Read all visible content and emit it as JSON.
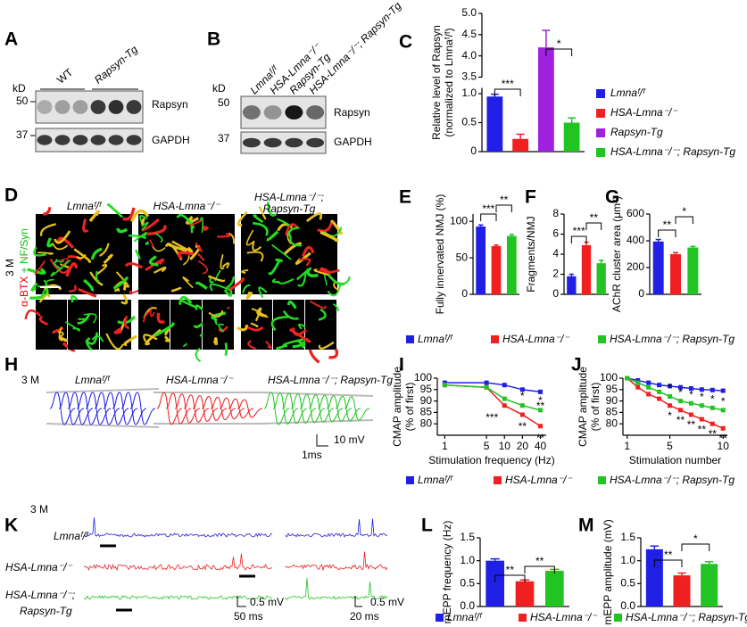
{
  "panel_labels": [
    "A",
    "B",
    "C",
    "D",
    "E",
    "F",
    "G",
    "H",
    "I",
    "J",
    "K",
    "L",
    "M"
  ],
  "panel_a": {
    "kd": "kD",
    "mw": [
      "50",
      "37"
    ],
    "groups": [
      "WT",
      "Rapsyn-Tg"
    ],
    "bands": [
      "Rapsyn",
      "GAPDH"
    ]
  },
  "panel_b": {
    "kd": "kD",
    "mw": [
      "50",
      "37"
    ],
    "lanes": [
      "Lmnaᶠ/ᶠ",
      "HSA-Lmna⁻/⁻",
      "Rapsyn-Tg",
      "HSA-Lmna⁻/⁻; Rapsyn-Tg"
    ],
    "bands": [
      "Rapsyn",
      "GAPDH"
    ]
  },
  "panel_d": {
    "titles": [
      "Lmnaᶠ/ᶠ",
      "HSA-Lmna⁻/⁻",
      "HSA-Lmna⁻/⁻;",
      "Rapsyn-Tg"
    ],
    "age": "3 M",
    "stain_red": "α-BTX",
    "stain_plus": " + ",
    "stain_green": "NF/Syn"
  },
  "panel_h": {
    "age": "3 M",
    "titles": [
      "Lmnaᶠ/ᶠ",
      "HSA-Lmna⁻/⁻",
      "HSA-Lmna⁻/⁻; Rapsyn-Tg"
    ],
    "scale_v": "10 mV",
    "scale_t": "1ms"
  },
  "panel_k": {
    "age": "3 M",
    "rows": [
      "Lmnaᶠ/ᶠ",
      "HSA-Lmna⁻/⁻",
      "HSA-Lmna⁻/⁻;",
      "Rapsyn-Tg"
    ],
    "scale_v1": "0.5 mV",
    "scale_t1": "50 ms",
    "scale_v2": "0.5 mV",
    "scale_t2": "20 ms"
  },
  "legend": [
    {
      "name": "Lmnaᶠ/ᶠ",
      "color": "#1f1fe6"
    },
    {
      "name": "HSA-Lmna⁻/⁻",
      "color": "#f02020"
    },
    {
      "name": "HSA-Lmna⁻/⁻; Rapsyn-Tg",
      "color": "#22c422"
    }
  ],
  "chart_data": [
    {
      "type": "bar",
      "ylabel": [
        "Relative level of Rapsyn",
        "(normalized to Lmnaᶠ/ᶠ)"
      ],
      "values": [
        0.95,
        0.22,
        4.2,
        0.5
      ],
      "errors": [
        0.04,
        0.08,
        0.4,
        0.08
      ],
      "colors": [
        "#1f1fe6",
        "#f02020",
        "#a020e0",
        "#22c422"
      ],
      "ylim": [
        0,
        5
      ],
      "ybreak": [
        1.1,
        3.5
      ],
      "yticks": [
        0,
        0.5,
        {
          "value": 1,
          "label": "1.0"
        },
        3.5,
        {
          "value": 4,
          "label": "4.0"
        },
        4.5,
        {
          "value": 5,
          "label": "5.0"
        }
      ],
      "annotations": [
        "***",
        "*"
      ],
      "legend": [
        "Lmnaᶠ/ᶠ",
        "HSA-Lmna⁻/⁻",
        "Rapsyn-Tg",
        "HSA-Lmna⁻/⁻; Rapsyn-Tg"
      ]
    },
    {
      "type": "bar",
      "ylabel": [
        "Fully innervated NMJ (%)"
      ],
      "values": [
        93,
        66,
        80
      ],
      "errors": [
        2,
        1.5,
        2
      ],
      "colors": [
        "#1f1fe6",
        "#f02020",
        "#22c422"
      ],
      "ylim": [
        0,
        110
      ],
      "yticks": [
        0,
        50,
        100
      ],
      "annotations": [
        "***",
        "**"
      ]
    },
    {
      "type": "bar",
      "ylabel": [
        "Fragments/NMJ"
      ],
      "values": [
        1.8,
        4.9,
        3.1
      ],
      "errors": [
        0.2,
        0.3,
        0.3
      ],
      "colors": [
        "#1f1fe6",
        "#f02020",
        "#22c422"
      ],
      "ylim": [
        0,
        8
      ],
      "yticks": [
        0,
        2,
        4,
        6,
        8
      ],
      "annotations": [
        "***",
        "**"
      ]
    },
    {
      "type": "bar",
      "ylabel": [
        "AChR cluster area (μm²)"
      ],
      "values": [
        395,
        300,
        350
      ],
      "errors": [
        15,
        12,
        8
      ],
      "colors": [
        "#1f1fe6",
        "#f02020",
        "#22c422"
      ],
      "ylim": [
        0,
        600
      ],
      "yticks": [
        0,
        200,
        400,
        600
      ],
      "annotations": [
        "**",
        "*"
      ]
    },
    {
      "type": "line",
      "xlabel": "Stimulation frequency (Hz)",
      "ylabel": [
        "CMAP amplitude",
        "(% of first)"
      ],
      "x": [
        1,
        5,
        10,
        20,
        40
      ],
      "xscale": "log",
      "xlim": [
        0.75,
        50
      ],
      "xticks": [
        1,
        5,
        10,
        20,
        40
      ],
      "ylim": [
        75,
        100
      ],
      "yticks": [
        80,
        85,
        90,
        95,
        100
      ],
      "series": [
        {
          "name": "Lmnaᶠ/ᶠ",
          "color": "#1f1fe6",
          "values": [
            98,
            98,
            97,
            95,
            94
          ]
        },
        {
          "name": "HSA-Lmna⁻/⁻",
          "color": "#f02020",
          "values": [
            97,
            96,
            88,
            84,
            79
          ]
        },
        {
          "name": "HSA-Lmna⁻/⁻; Rapsyn-Tg",
          "color": "#22c422",
          "values": [
            97,
            96,
            91,
            88,
            86
          ]
        }
      ],
      "annotations": [
        "***",
        "**",
        "*",
        "**",
        "*",
        "**"
      ]
    },
    {
      "type": "line",
      "xlabel": "Stimulation number",
      "ylabel": [
        "CMAP amplitude",
        "(% of first)"
      ],
      "x": [
        1,
        2,
        3,
        4,
        5,
        6,
        7,
        8,
        9,
        10
      ],
      "xscale": "linear",
      "xlim": [
        0.6,
        10.4
      ],
      "xticks": [
        1,
        5,
        10
      ],
      "ylim": [
        75,
        100
      ],
      "yticks": [
        80,
        85,
        90,
        95,
        100
      ],
      "series": [
        {
          "name": "Lmnaᶠ/ᶠ",
          "color": "#1f1fe6",
          "values": [
            100,
            99,
            98,
            97,
            96.5,
            96,
            95.5,
            95,
            94.8,
            94.5
          ]
        },
        {
          "name": "HSA-Lmna⁻/⁻",
          "color": "#f02020",
          "values": [
            100,
            96,
            93,
            91,
            88,
            86,
            84,
            82,
            80,
            78
          ]
        },
        {
          "name": "HSA-Lmna⁻/⁻; Rapsyn-Tg",
          "color": "#22c422",
          "values": [
            100,
            98,
            96,
            94,
            92,
            90,
            89,
            88,
            87,
            86
          ]
        }
      ],
      "annotations": [
        "*",
        "**",
        "**",
        "**",
        "**",
        "**",
        "*",
        "*",
        "*",
        "*",
        "*",
        "*"
      ]
    },
    {
      "type": "bar",
      "ylabel": [
        "mEPP frequency (Hz)"
      ],
      "values": [
        1.0,
        0.55,
        0.78
      ],
      "errors": [
        0.04,
        0.03,
        0.03
      ],
      "colors": [
        "#1f1fe6",
        "#f02020",
        "#22c422"
      ],
      "ylim": [
        0,
        1.5
      ],
      "yticks": [
        {
          "value": 0,
          "label": "0.0"
        },
        0.5,
        {
          "value": 1,
          "label": "1.0"
        },
        1.5
      ],
      "annotations": [
        "**",
        "**"
      ]
    },
    {
      "type": "bar",
      "ylabel": [
        "mEPP amplitude (mV)"
      ],
      "values": [
        1.25,
        0.68,
        0.93
      ],
      "errors": [
        0.07,
        0.05,
        0.05
      ],
      "colors": [
        "#1f1fe6",
        "#f02020",
        "#22c422"
      ],
      "ylim": [
        0,
        1.5
      ],
      "yticks": [
        {
          "value": 0,
          "label": "0.0"
        },
        0.5,
        {
          "value": 1,
          "label": "1.0"
        },
        1.5
      ],
      "annotations": [
        "**",
        "*"
      ]
    }
  ]
}
